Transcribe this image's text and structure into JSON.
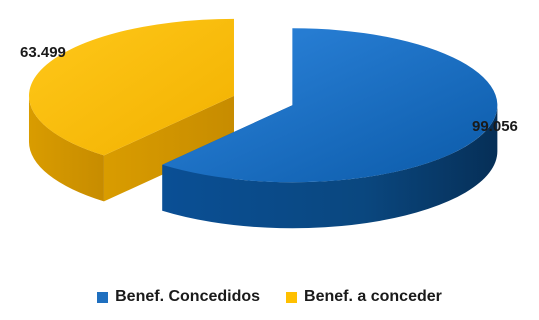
{
  "chart_data": {
    "type": "pie",
    "title": "",
    "categories": [
      "Benef. Concedidos",
      "Benef. a conceder"
    ],
    "values": [
      99056,
      63499
    ],
    "data_labels": [
      "99.056",
      "63.499"
    ],
    "colors": [
      "#1F6FBF",
      "#FFC000"
    ],
    "legend_position": "bottom",
    "exploded": true,
    "style": "3d"
  },
  "legend": {
    "items": [
      {
        "label": "Benef. Concedidos",
        "color": "#1F6FBF"
      },
      {
        "label": "Benef. a conceder",
        "color": "#FFC000"
      }
    ]
  }
}
